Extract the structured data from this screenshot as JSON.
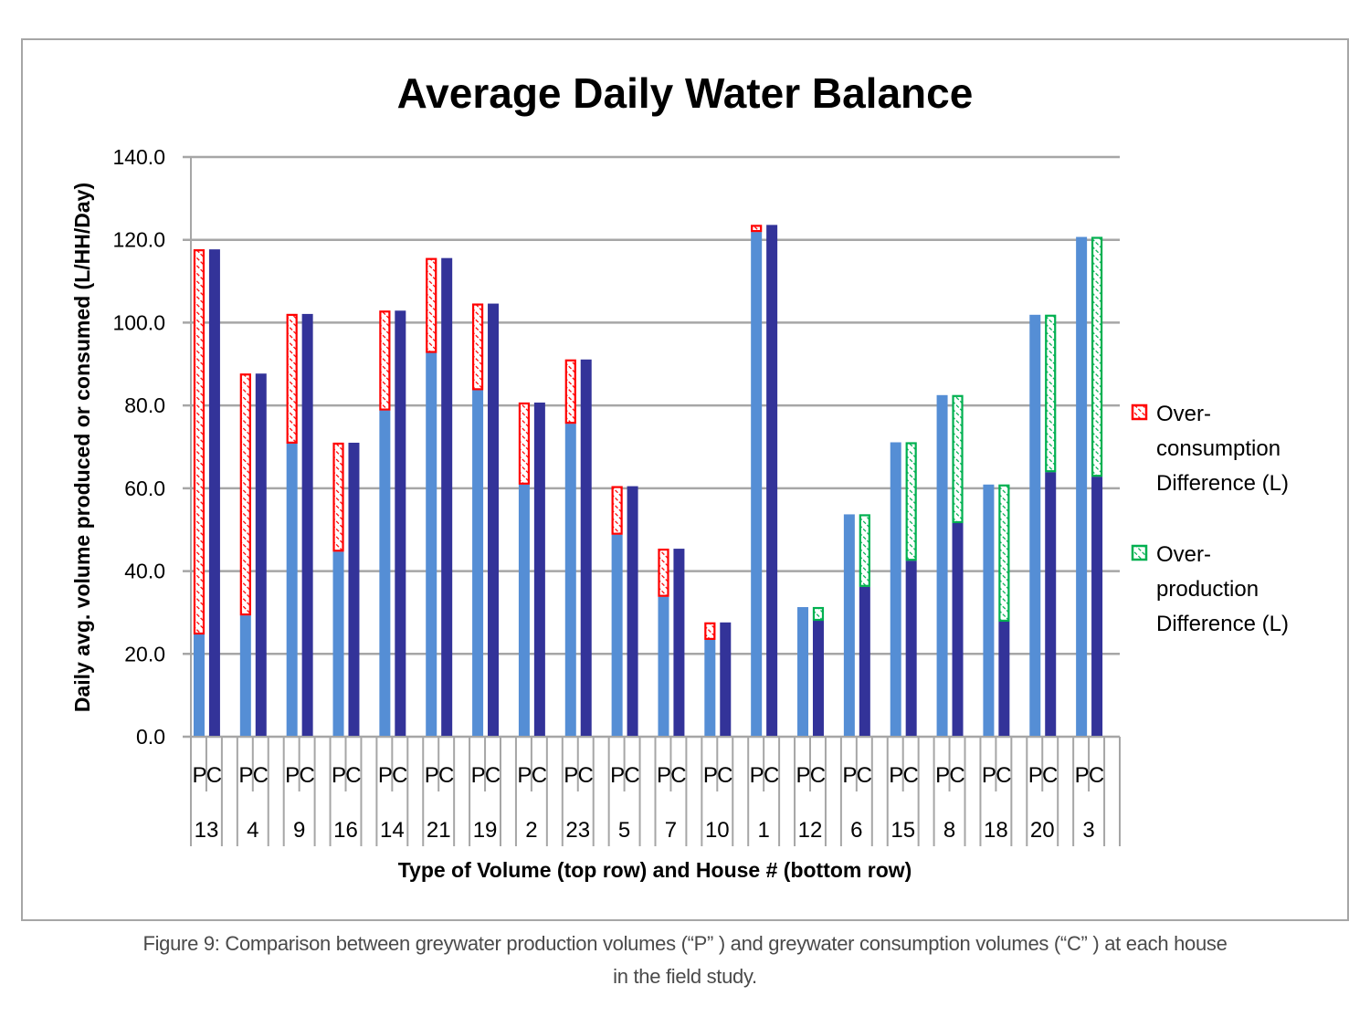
{
  "chart_data": {
    "type": "bar",
    "subtype": "grouped-stacked",
    "title": "Average Daily Water Balance",
    "xlabel": "Type of Volume (top row) and House # (bottom row)",
    "ylabel": "Daily avg. volume produced or consumed (L/HH/Day)",
    "ylim": [
      0,
      140
    ],
    "yticks": [
      "0.0",
      "20.0",
      "40.0",
      "60.0",
      "80.0",
      "100.0",
      "120.0",
      "140.0"
    ],
    "ytick_values": [
      0,
      20,
      40,
      60,
      80,
      100,
      120,
      140
    ],
    "grid": true,
    "legend_position": "right",
    "subcategory_labels": [
      "P",
      "C"
    ],
    "categories": [
      "13",
      "4",
      "9",
      "16",
      "14",
      "21",
      "19",
      "2",
      "23",
      "5",
      "7",
      "10",
      "1",
      "12",
      "6",
      "15",
      "8",
      "18",
      "20",
      "3"
    ],
    "series": [
      {
        "name": "Production (P)",
        "color": "#558ED5",
        "values": [
          24.7,
          29.3,
          70.8,
          44.7,
          78.8,
          92.7,
          83.7,
          60.9,
          75.6,
          48.8,
          33.8,
          23.4,
          121.9,
          31.3,
          53.7,
          71.1,
          82.5,
          60.9,
          101.9,
          120.7
        ]
      },
      {
        "name": "Consumption (C)",
        "color": "#333399",
        "values": [
          117.7,
          87.7,
          102.1,
          71.0,
          102.9,
          115.6,
          104.6,
          80.7,
          91.1,
          60.5,
          45.4,
          27.6,
          123.6,
          28.0,
          36.2,
          42.5,
          51.6,
          27.8,
          63.9,
          62.8
        ]
      }
    ],
    "legend": [
      {
        "name": "Over-consumption Difference (L)",
        "lines": [
          "Over-",
          "consumption",
          "Difference (L)"
        ],
        "color": "#FF0000",
        "pattern": "hatched"
      },
      {
        "name": "Over-production Difference (L)",
        "lines": [
          "Over-",
          "production",
          "Difference (L)"
        ],
        "color": "#00B050",
        "pattern": "hatched"
      }
    ]
  },
  "caption": {
    "line1": "Figure 9: Comparison between greywater production volumes (“P” ) and greywater consumption volumes (“C” ) at each house",
    "line2": "in the field study."
  }
}
